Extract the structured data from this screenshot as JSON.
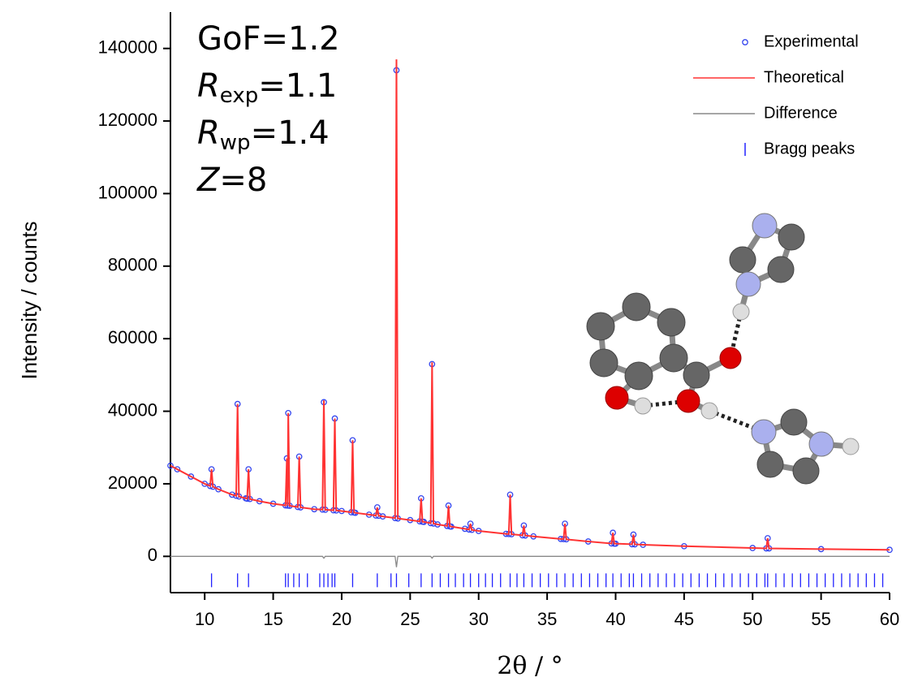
{
  "chart_data": {
    "type": "rietveld",
    "ylabel": "Intensity / counts",
    "xlabel": "2θ / °",
    "annotations": [
      {
        "label": "GoF",
        "text": "=1.2",
        "italic": false
      },
      {
        "label": "R",
        "subscript": "exp",
        "text": "=1.1",
        "italic": true
      },
      {
        "label": "R",
        "subscript": "wp",
        "text": "=1.4",
        "italic": true
      },
      {
        "label": "Z",
        "text": "=8",
        "italic": true
      }
    ],
    "xlim": [
      7.5,
      60
    ],
    "xticks": [
      10,
      15,
      20,
      25,
      30,
      35,
      40,
      45,
      50,
      55,
      60
    ],
    "ylim": [
      -10000,
      150000
    ],
    "yticks": [
      0,
      20000,
      40000,
      60000,
      80000,
      100000,
      120000,
      140000
    ],
    "legend": "upper right",
    "x": [
      7.5,
      8,
      9,
      10,
      10.4,
      10.5,
      10.6,
      11,
      12,
      12.3,
      12.4,
      12.5,
      13,
      13.1,
      13.2,
      13.3,
      14,
      15,
      15.9,
      16.0,
      16.05,
      16.1,
      16.2,
      16.8,
      16.9,
      17.0,
      18,
      18.6,
      18.7,
      18.8,
      19.4,
      19.5,
      19.6,
      20,
      20.7,
      20.8,
      20.9,
      21,
      22,
      22.5,
      22.6,
      22.7,
      23,
      23.9,
      24.0,
      24.1,
      25,
      25.7,
      25.8,
      25.9,
      26,
      26.5,
      26.6,
      26.7,
      27,
      27.7,
      27.8,
      27.9,
      28,
      29,
      29.3,
      29.4,
      29.5,
      30,
      32,
      32.2,
      32.3,
      32.4,
      33.2,
      33.3,
      33.4,
      34,
      36,
      36.2,
      36.3,
      36.4,
      38,
      39.7,
      39.8,
      39.9,
      40,
      41.2,
      41.3,
      41.4,
      42,
      45,
      50,
      51.0,
      51.1,
      51.2,
      55,
      60
    ],
    "series": [
      {
        "name": "Experimental",
        "type": "scatter",
        "color": "#3344ee",
        "values": [
          25000,
          24000,
          22000,
          20000,
          19400,
          24000,
          19200,
          18500,
          17000,
          16700,
          42000,
          16500,
          16000,
          15900,
          24000,
          15800,
          15200,
          14500,
          14050,
          27000,
          14000,
          39500,
          13950,
          13600,
          27500,
          13500,
          13000,
          12900,
          42500,
          12850,
          12700,
          38000,
          12650,
          12500,
          12150,
          32000,
          12100,
          12000,
          11500,
          11250,
          13500,
          11200,
          11000,
          10550,
          134000,
          10450,
          10000,
          9650,
          16000,
          9550,
          9500,
          9150,
          53000,
          9050,
          8800,
          8380,
          14000,
          8260,
          8200,
          7600,
          7400,
          9000,
          7300,
          7000,
          6200,
          6150,
          17000,
          6100,
          5800,
          8500,
          5750,
          5500,
          4800,
          4750,
          9000,
          4700,
          4100,
          3550,
          6500,
          3500,
          3500,
          3350,
          6000,
          3320,
          3200,
          2800,
          2300,
          2200,
          5000,
          2200,
          2000,
          1800
        ]
      },
      {
        "name": "Theoretical",
        "type": "line",
        "color": "#ff3333",
        "values": [
          25000,
          24000,
          22000,
          20000,
          19400,
          24000,
          19200,
          18500,
          17000,
          16700,
          42000,
          16500,
          16000,
          15900,
          24000,
          15800,
          15200,
          14500,
          14050,
          27000,
          14000,
          39500,
          13950,
          13600,
          27500,
          13500,
          13000,
          12900,
          43000,
          12850,
          12700,
          38000,
          12650,
          12500,
          12150,
          32000,
          12100,
          12000,
          11500,
          11250,
          13500,
          11200,
          11000,
          10550,
          137000,
          10450,
          10000,
          9650,
          16000,
          9550,
          9500,
          9150,
          53500,
          9050,
          8800,
          8380,
          14000,
          8260,
          8200,
          7600,
          7400,
          9000,
          7300,
          7000,
          6200,
          6150,
          17000,
          6100,
          5800,
          8500,
          5750,
          5500,
          4800,
          4750,
          9000,
          4700,
          4100,
          3550,
          6500,
          3500,
          3500,
          3350,
          6000,
          3320,
          3200,
          2800,
          2300,
          2200,
          5000,
          2200,
          2000,
          1800
        ]
      },
      {
        "name": "Difference",
        "type": "line",
        "color": "#888888",
        "values": [
          0,
          0,
          0,
          0,
          0,
          0,
          0,
          0,
          0,
          0,
          0,
          0,
          0,
          0,
          0,
          0,
          0,
          0,
          0,
          0,
          0,
          0,
          0,
          0,
          0,
          0,
          0,
          0,
          -500,
          0,
          0,
          0,
          0,
          0,
          0,
          0,
          0,
          0,
          0,
          0,
          0,
          0,
          0,
          0,
          -3000,
          0,
          0,
          0,
          0,
          0,
          0,
          0,
          -500,
          0,
          0,
          0,
          0,
          0,
          0,
          0,
          0,
          0,
          0,
          0,
          0,
          0,
          0,
          0,
          0,
          0,
          0,
          0,
          0,
          0,
          0,
          0,
          0,
          0,
          0,
          0,
          0,
          0,
          0,
          0,
          0,
          0,
          0,
          0,
          0,
          0,
          0,
          0
        ]
      },
      {
        "name": "Bragg peaks",
        "type": "ticks",
        "color": "#2222ff",
        "x": [
          10.5,
          12.4,
          13.2,
          15.9,
          16.1,
          16.5,
          16.9,
          17.5,
          18.4,
          18.7,
          19.0,
          19.3,
          19.5,
          20.8,
          22.6,
          23.6,
          24.0,
          24.9,
          25.8,
          26.6,
          27.2,
          27.8,
          28.3,
          28.9,
          29.4,
          30.0,
          30.5,
          31.0,
          31.6,
          32.3,
          32.8,
          33.3,
          33.9,
          34.5,
          35.1,
          35.7,
          36.3,
          36.9,
          37.5,
          38.1,
          38.7,
          39.3,
          39.8,
          40.4,
          41.0,
          41.3,
          41.9,
          42.5,
          43.1,
          43.7,
          44.3,
          44.9,
          45.5,
          46.1,
          46.7,
          47.3,
          47.9,
          48.5,
          49.1,
          49.7,
          50.3,
          50.9,
          51.1,
          51.7,
          52.3,
          52.9,
          53.5,
          54.1,
          54.7,
          55.3,
          55.9,
          56.5,
          57.1,
          57.7,
          58.3,
          58.9,
          59.5
        ]
      }
    ]
  }
}
